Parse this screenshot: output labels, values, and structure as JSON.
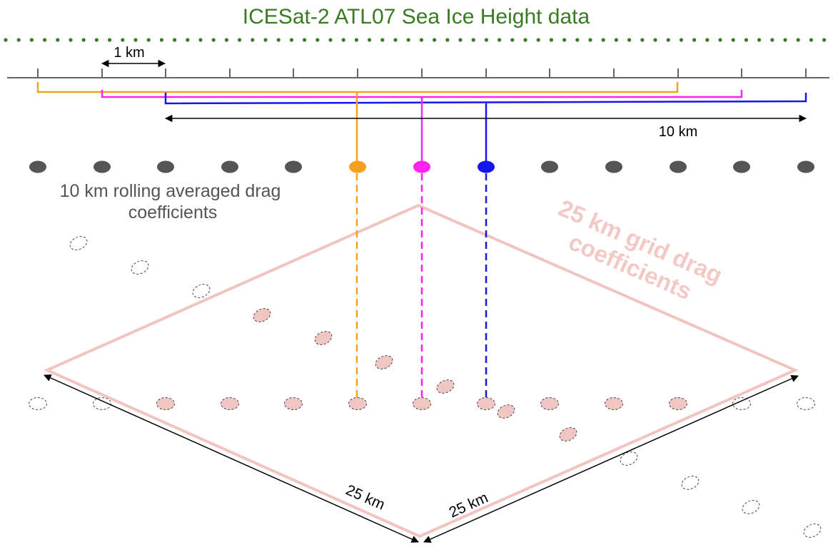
{
  "title": "ICESat-2 ATL07 Sea Ice Height data",
  "scale_label_1km": "1 km",
  "scale_label_10km": "10 km",
  "rolling_label_line1": "10 km rolling averaged drag",
  "rolling_label_line2": "coefficients",
  "grid_label_line1": "25 km grid drag",
  "grid_label_line2": "coefficients",
  "grid_edge_label_left": "25 km",
  "grid_edge_label_right": "25 km",
  "colors": {
    "title_green": "#3a7a25",
    "track_gray": "#666666",
    "dot_gray": "#555555",
    "orange": "#f5a020",
    "magenta": "#ff22ee",
    "blue": "#1515ee",
    "grid_pink": "#f2c4c0",
    "grid_label_pink": "#f3c9c5",
    "ellipse_fill": "#f0c6c3"
  }
}
